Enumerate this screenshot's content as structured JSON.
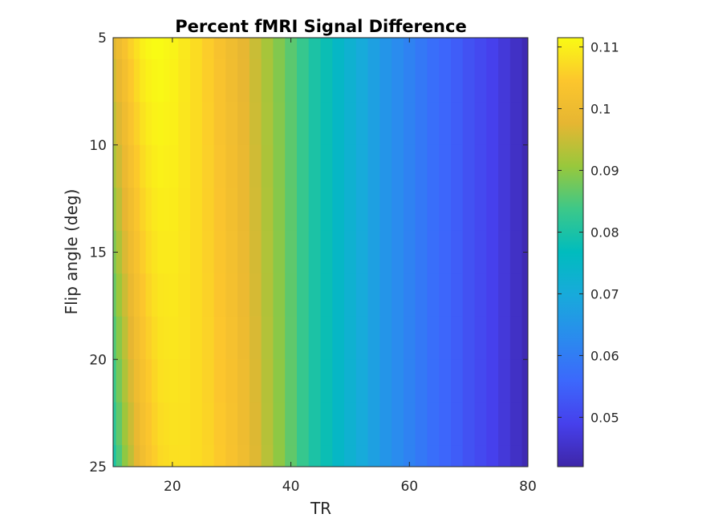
{
  "chart_data": {
    "type": "heatmap",
    "title": "Percent fMRI Signal Difference",
    "xlabel": "TR",
    "ylabel": "Flip angle (deg)",
    "xlim": [
      10,
      80
    ],
    "ylim": [
      5,
      25
    ],
    "y_direction": "reversed",
    "x_ticks": [
      20,
      40,
      60,
      80
    ],
    "y_ticks": [
      5,
      10,
      15,
      20,
      25
    ],
    "colormap": "parula",
    "colorbar": {
      "limits": [
        0.042,
        0.1115
      ],
      "ticks": [
        0.05,
        0.06,
        0.07,
        0.08,
        0.09,
        0.1,
        0.11
      ],
      "tick_labels": [
        "0.05",
        "0.06",
        "0.07",
        "0.08",
        "0.09",
        "0.1",
        "0.11"
      ]
    },
    "tr_values": [
      10,
      11,
      12,
      13,
      14,
      15,
      16,
      17,
      18,
      19,
      20,
      22,
      24,
      26,
      28,
      30,
      32,
      34,
      36,
      38,
      40,
      42,
      44,
      46,
      48,
      50,
      52,
      54,
      56,
      58,
      60,
      62,
      64,
      66,
      68,
      70,
      72,
      74,
      76,
      78,
      80
    ],
    "flip_angles": [
      5,
      7,
      9,
      11,
      13,
      15,
      17,
      19,
      21,
      23,
      25
    ],
    "values_at_flip_5": [
      0.097,
      0.1,
      0.103,
      0.106,
      0.108,
      0.11,
      0.111,
      0.1115,
      0.1115,
      0.111,
      0.1105,
      0.109,
      0.1075,
      0.1055,
      0.103,
      0.1005,
      0.098,
      0.095,
      0.092,
      0.089,
      0.086,
      0.083,
      0.08,
      0.078,
      0.075,
      0.0725,
      0.07,
      0.0675,
      0.065,
      0.063,
      0.061,
      0.059,
      0.057,
      0.0555,
      0.054,
      0.052,
      0.0505,
      0.049,
      0.047,
      0.045,
      0.043
    ],
    "values_at_flip_25": [
      0.08,
      0.085,
      0.09,
      0.094,
      0.098,
      0.101,
      0.1035,
      0.1055,
      0.107,
      0.1075,
      0.108,
      0.108,
      0.1075,
      0.1065,
      0.105,
      0.103,
      0.1005,
      0.097,
      0.0935,
      0.09,
      0.0865,
      0.083,
      0.08,
      0.078,
      0.075,
      0.0725,
      0.07,
      0.0675,
      0.065,
      0.063,
      0.061,
      0.059,
      0.057,
      0.0555,
      0.054,
      0.052,
      0.0505,
      0.049,
      0.047,
      0.045,
      0.043
    ]
  }
}
